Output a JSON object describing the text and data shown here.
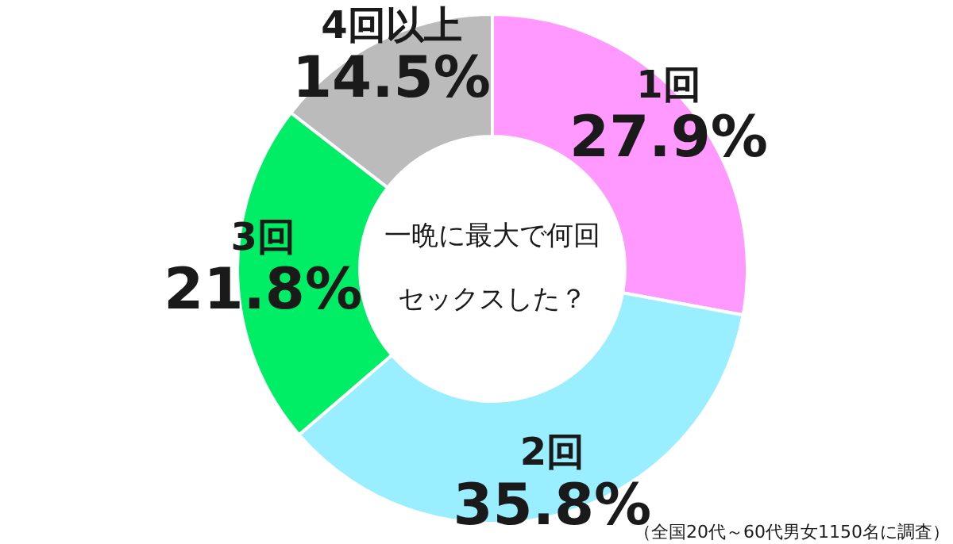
{
  "chart_data": {
    "type": "donut",
    "title": "一晩に最大で何回セックスした？",
    "categories": [
      "1回",
      "2回",
      "3回",
      "4回以上"
    ],
    "values": [
      27.9,
      35.8,
      21.8,
      14.5
    ],
    "colors": [
      "#ff99ff",
      "#99eeff",
      "#00ee66",
      "#bbbbbb"
    ],
    "value_labels": [
      "27.9%",
      "35.8%",
      "21.8%",
      "14.5%"
    ],
    "legend": false,
    "annotations": [
      "（全国20代～60代男女1150名に調査）"
    ]
  }
}
